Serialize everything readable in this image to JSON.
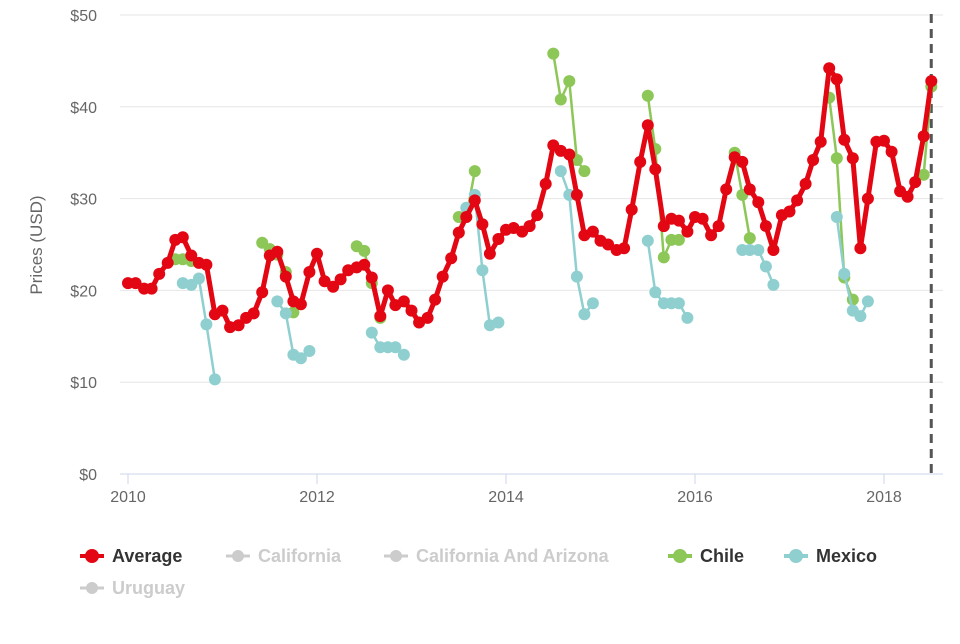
{
  "chart_data": {
    "type": "line",
    "ylabel": "Prices (USD)",
    "ylim": [
      0,
      50
    ],
    "xlim": [
      2010.0,
      2018.55
    ],
    "y_ticks": [
      {
        "value": 0,
        "label": "$0"
      },
      {
        "value": 10,
        "label": "$10"
      },
      {
        "value": 20,
        "label": "$20"
      },
      {
        "value": 30,
        "label": "$30"
      },
      {
        "value": 40,
        "label": "$40"
      },
      {
        "value": 50,
        "label": "$50"
      }
    ],
    "x_ticks": [
      {
        "value": 2010,
        "label": "2010"
      },
      {
        "value": 2012,
        "label": "2012"
      },
      {
        "value": 2014,
        "label": "2014"
      },
      {
        "value": 2016,
        "label": "2016"
      },
      {
        "value": 2018,
        "label": "2018"
      }
    ],
    "grid": "horizontal",
    "plot_line": {
      "x": 2018.5,
      "style": "dashed"
    },
    "legend_position": "bottom-left",
    "series": [
      {
        "name": "Average",
        "color": "#e30613",
        "visible": true,
        "width": 5,
        "radius": 6,
        "segments": [
          [
            [
              2010.0,
              20.8
            ],
            [
              2010.08,
              20.8
            ],
            [
              2010.17,
              20.2
            ],
            [
              2010.25,
              20.2
            ],
            [
              2010.33,
              21.8
            ],
            [
              2010.42,
              23.0
            ],
            [
              2010.5,
              25.5
            ],
            [
              2010.58,
              25.8
            ],
            [
              2010.67,
              23.8
            ],
            [
              2010.75,
              23.0
            ],
            [
              2010.83,
              22.8
            ],
            [
              2010.92,
              17.4
            ],
            [
              2011.0,
              17.8
            ],
            [
              2011.08,
              16.0
            ],
            [
              2011.17,
              16.2
            ],
            [
              2011.25,
              17.0
            ],
            [
              2011.33,
              17.5
            ],
            [
              2011.42,
              19.8
            ],
            [
              2011.5,
              23.8
            ],
            [
              2011.58,
              24.2
            ],
            [
              2011.67,
              21.5
            ],
            [
              2011.75,
              18.8
            ],
            [
              2011.83,
              18.5
            ],
            [
              2011.92,
              22.0
            ],
            [
              2012.0,
              24.0
            ],
            [
              2012.08,
              21.0
            ],
            [
              2012.17,
              20.4
            ],
            [
              2012.25,
              21.2
            ],
            [
              2012.33,
              22.2
            ],
            [
              2012.42,
              22.5
            ],
            [
              2012.5,
              22.8
            ],
            [
              2012.58,
              21.4
            ],
            [
              2012.67,
              17.2
            ],
            [
              2012.75,
              20.0
            ],
            [
              2012.83,
              18.4
            ],
            [
              2012.92,
              18.8
            ],
            [
              2013.0,
              17.8
            ],
            [
              2013.08,
              16.5
            ],
            [
              2013.17,
              17.0
            ],
            [
              2013.25,
              19.0
            ],
            [
              2013.33,
              21.5
            ],
            [
              2013.42,
              23.5
            ],
            [
              2013.5,
              26.3
            ],
            [
              2013.58,
              28.0
            ],
            [
              2013.67,
              29.8
            ],
            [
              2013.75,
              27.2
            ],
            [
              2013.83,
              24.0
            ],
            [
              2013.92,
              25.6
            ],
            [
              2014.0,
              26.6
            ],
            [
              2014.08,
              26.8
            ],
            [
              2014.17,
              26.4
            ],
            [
              2014.25,
              27.0
            ],
            [
              2014.33,
              28.2
            ],
            [
              2014.42,
              31.6
            ],
            [
              2014.5,
              35.8
            ],
            [
              2014.58,
              35.2
            ],
            [
              2014.67,
              34.8
            ],
            [
              2014.75,
              30.4
            ],
            [
              2014.83,
              26.0
            ],
            [
              2014.92,
              26.4
            ],
            [
              2015.0,
              25.4
            ],
            [
              2015.08,
              25.0
            ],
            [
              2015.17,
              24.4
            ],
            [
              2015.25,
              24.6
            ],
            [
              2015.33,
              28.8
            ],
            [
              2015.42,
              34.0
            ],
            [
              2015.5,
              38.0
            ],
            [
              2015.58,
              33.2
            ],
            [
              2015.67,
              27.0
            ],
            [
              2015.75,
              27.8
            ],
            [
              2015.83,
              27.6
            ],
            [
              2015.92,
              26.4
            ],
            [
              2016.0,
              28.0
            ],
            [
              2016.08,
              27.8
            ],
            [
              2016.17,
              26.0
            ],
            [
              2016.25,
              27.0
            ],
            [
              2016.33,
              31.0
            ],
            [
              2016.42,
              34.5
            ],
            [
              2016.5,
              34.0
            ],
            [
              2016.58,
              31.0
            ],
            [
              2016.67,
              29.6
            ],
            [
              2016.75,
              27.0
            ],
            [
              2016.83,
              24.4
            ],
            [
              2016.92,
              28.2
            ],
            [
              2017.0,
              28.6
            ],
            [
              2017.08,
              29.8
            ],
            [
              2017.17,
              31.6
            ],
            [
              2017.25,
              34.2
            ],
            [
              2017.33,
              36.2
            ],
            [
              2017.42,
              44.2
            ],
            [
              2017.5,
              43.0
            ],
            [
              2017.58,
              36.4
            ],
            [
              2017.67,
              34.4
            ],
            [
              2017.75,
              24.6
            ],
            [
              2017.83,
              30.0
            ],
            [
              2017.92,
              36.2
            ],
            [
              2018.0,
              36.3
            ],
            [
              2018.08,
              35.1
            ],
            [
              2018.17,
              30.8
            ],
            [
              2018.25,
              30.2
            ],
            [
              2018.33,
              31.8
            ],
            [
              2018.42,
              36.8
            ],
            [
              2018.5,
              42.8
            ]
          ]
        ]
      },
      {
        "name": "California",
        "color": "#cccccc",
        "visible": false,
        "segments": []
      },
      {
        "name": "California And Arizona",
        "color": "#cccccc",
        "visible": false,
        "segments": []
      },
      {
        "name": "Chile",
        "color": "#8cc757",
        "visible": true,
        "width": 2.5,
        "radius": 6,
        "segments": [
          [
            [
              2010.5,
              23.4
            ],
            [
              2010.58,
              23.4
            ],
            [
              2010.67,
              23.2
            ]
          ],
          [
            [
              2011.42,
              25.2
            ],
            [
              2011.5,
              24.5
            ],
            [
              2011.58,
              23.9
            ],
            [
              2011.67,
              22.0
            ],
            [
              2011.75,
              17.6
            ]
          ],
          [
            [
              2012.42,
              24.8
            ],
            [
              2012.5,
              24.3
            ],
            [
              2012.58,
              20.8
            ],
            [
              2012.67,
              17.0
            ]
          ],
          [
            [
              2013.5,
              28.0
            ],
            [
              2013.58,
              28.0
            ],
            [
              2013.67,
              33.0
            ]
          ],
          [
            [
              2014.5,
              45.8
            ],
            [
              2014.58,
              40.8
            ],
            [
              2014.67,
              42.8
            ],
            [
              2014.75,
              34.2
            ],
            [
              2014.83,
              33.0
            ]
          ],
          [
            [
              2015.5,
              41.2
            ],
            [
              2015.58,
              35.4
            ],
            [
              2015.67,
              23.6
            ],
            [
              2015.75,
              25.5
            ],
            [
              2015.83,
              25.5
            ]
          ],
          [
            [
              2016.42,
              35.0
            ],
            [
              2016.5,
              30.4
            ],
            [
              2016.58,
              25.7
            ]
          ],
          [
            [
              2017.42,
              41.0
            ],
            [
              2017.5,
              34.4
            ],
            [
              2017.58,
              21.4
            ],
            [
              2017.67,
              19.0
            ]
          ],
          [
            [
              2018.42,
              32.6
            ],
            [
              2018.5,
              42.2
            ]
          ]
        ]
      },
      {
        "name": "Mexico",
        "color": "#8fcfd0",
        "visible": true,
        "width": 2.5,
        "radius": 6,
        "segments": [
          [
            [
              2010.58,
              20.8
            ],
            [
              2010.67,
              20.6
            ],
            [
              2010.75,
              21.3
            ],
            [
              2010.83,
              16.3
            ],
            [
              2010.92,
              10.3
            ]
          ],
          [
            [
              2011.58,
              18.8
            ],
            [
              2011.67,
              17.5
            ],
            [
              2011.75,
              13.0
            ],
            [
              2011.83,
              12.6
            ],
            [
              2011.92,
              13.4
            ]
          ],
          [
            [
              2012.58,
              15.4
            ],
            [
              2012.67,
              13.8
            ],
            [
              2012.75,
              13.8
            ],
            [
              2012.83,
              13.8
            ],
            [
              2012.92,
              13.0
            ]
          ],
          [
            [
              2013.58,
              29.0
            ],
            [
              2013.67,
              30.4
            ],
            [
              2013.75,
              22.2
            ],
            [
              2013.83,
              16.2
            ],
            [
              2013.92,
              16.5
            ]
          ],
          [
            [
              2014.58,
              33.0
            ],
            [
              2014.67,
              30.4
            ],
            [
              2014.75,
              21.5
            ],
            [
              2014.83,
              17.4
            ],
            [
              2014.92,
              18.6
            ]
          ],
          [
            [
              2015.5,
              25.4
            ],
            [
              2015.58,
              19.8
            ],
            [
              2015.67,
              18.6
            ],
            [
              2015.75,
              18.6
            ],
            [
              2015.83,
              18.6
            ],
            [
              2015.92,
              17.0
            ]
          ],
          [
            [
              2016.5,
              24.4
            ],
            [
              2016.58,
              24.4
            ],
            [
              2016.67,
              24.4
            ],
            [
              2016.75,
              22.6
            ],
            [
              2016.83,
              20.6
            ]
          ],
          [
            [
              2017.5,
              28.0
            ],
            [
              2017.58,
              21.8
            ],
            [
              2017.67,
              17.8
            ],
            [
              2017.75,
              17.2
            ],
            [
              2017.83,
              18.8
            ]
          ]
        ]
      },
      {
        "name": "Uruguay",
        "color": "#cccccc",
        "visible": false,
        "segments": []
      }
    ]
  },
  "legend": [
    {
      "label": "Average",
      "active": true,
      "color": "#e30613"
    },
    {
      "label": "California",
      "active": false,
      "color": "#cccccc"
    },
    {
      "label": "California And Arizona",
      "active": false,
      "color": "#cccccc"
    },
    {
      "label": "Chile",
      "active": true,
      "color": "#8cc757"
    },
    {
      "label": "Mexico",
      "active": true,
      "color": "#8fcfd0"
    },
    {
      "label": "Uruguay",
      "active": false,
      "color": "#cccccc"
    }
  ]
}
